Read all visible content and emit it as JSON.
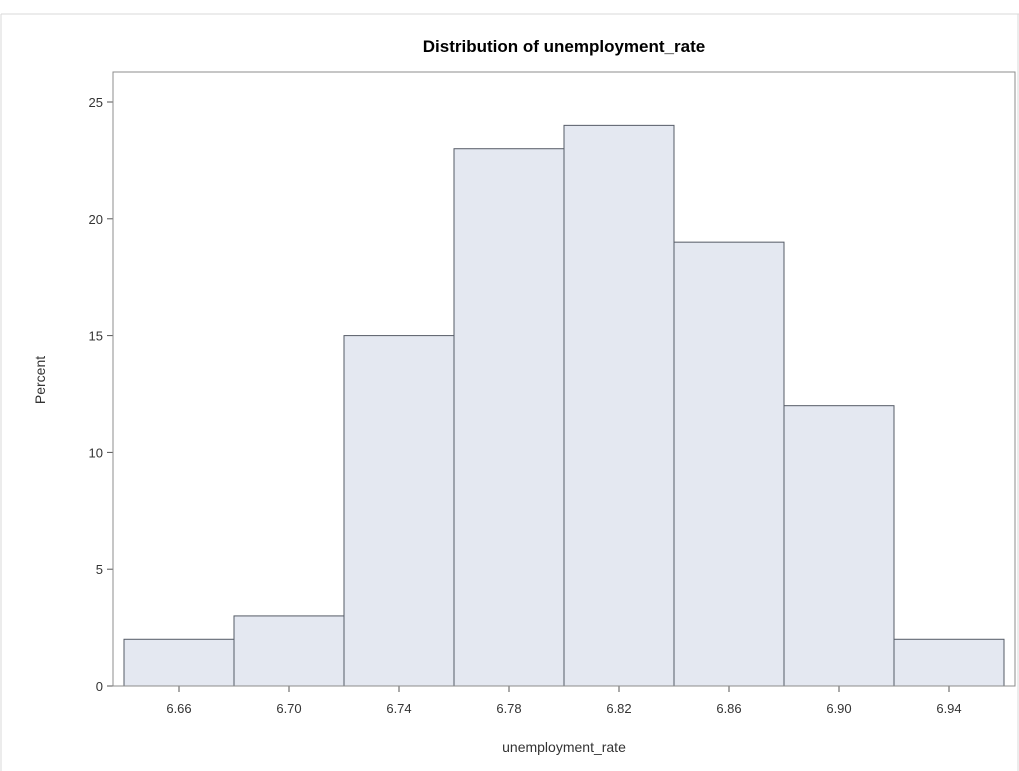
{
  "chart_data": {
    "type": "bar",
    "title": "Distribution of unemployment_rate",
    "xlabel": "unemployment_rate",
    "ylabel": "Percent",
    "bins": [
      {
        "start": 6.64,
        "end": 6.68,
        "value": 2
      },
      {
        "start": 6.68,
        "end": 6.72,
        "value": 3
      },
      {
        "start": 6.72,
        "end": 6.76,
        "value": 15
      },
      {
        "start": 6.76,
        "end": 6.8,
        "value": 23
      },
      {
        "start": 6.8,
        "end": 6.84,
        "value": 24
      },
      {
        "start": 6.84,
        "end": 6.88,
        "value": 19
      },
      {
        "start": 6.88,
        "end": 6.92,
        "value": 12
      },
      {
        "start": 6.92,
        "end": 6.96,
        "value": 2
      }
    ],
    "xticks": [
      "6.66",
      "6.70",
      "6.74",
      "6.78",
      "6.82",
      "6.86",
      "6.90",
      "6.94"
    ],
    "yticks": [
      "0",
      "5",
      "10",
      "15",
      "20",
      "25"
    ],
    "xlim": [
      6.636,
      6.964
    ],
    "ylim": [
      0,
      25
    ],
    "grid": false,
    "colors": {
      "bar_fill": "#e4e8f1",
      "bar_stroke": "#555b66"
    }
  }
}
